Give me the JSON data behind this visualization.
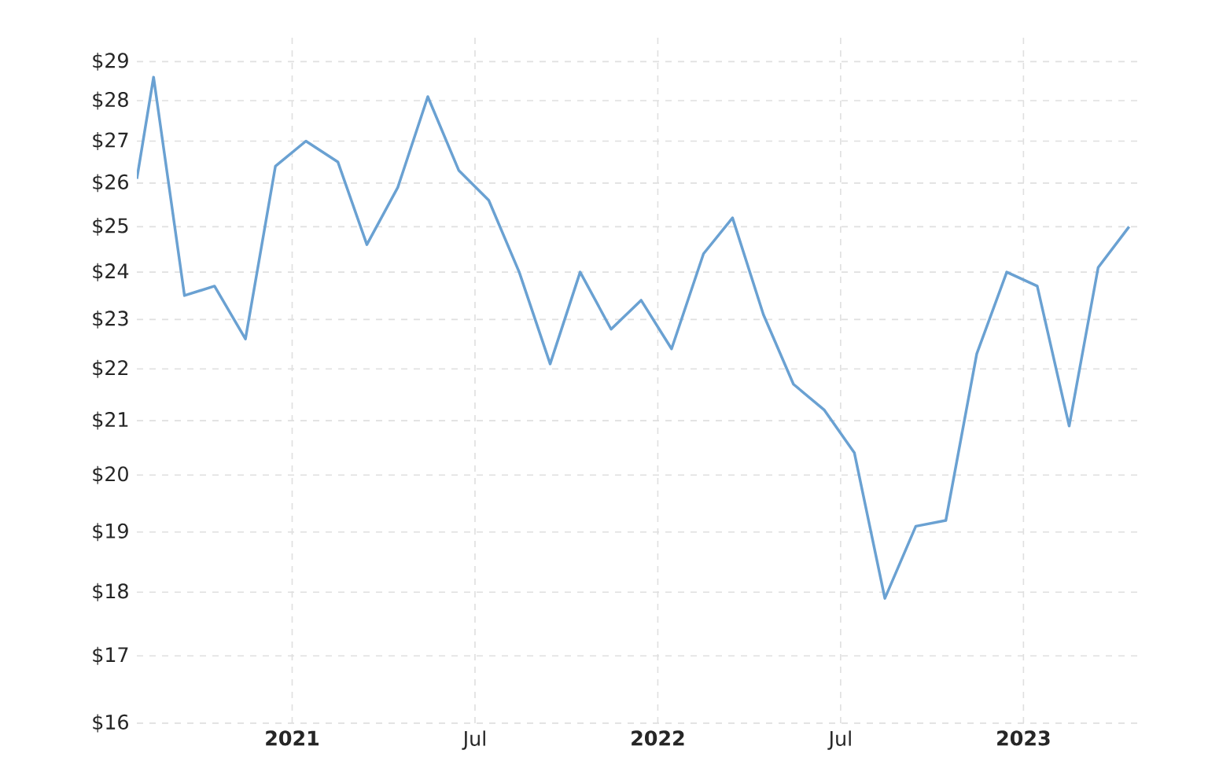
{
  "chart_data": {
    "type": "line",
    "log": "y",
    "grid": true,
    "color": "#6aa1d2",
    "line_style": "solid",
    "marker": "none",
    "x": [
      "2020-07-29",
      "2020-08-15",
      "2020-09-15",
      "2020-10-15",
      "2020-11-15",
      "2020-12-15",
      "2021-01-15",
      "2021-02-15",
      "2021-03-15",
      "2021-04-15",
      "2021-05-15",
      "2021-06-15",
      "2021-07-15",
      "2021-08-15",
      "2021-09-15",
      "2021-10-15",
      "2021-11-15",
      "2021-12-15",
      "2022-01-15",
      "2022-02-15",
      "2022-03-15",
      "2022-04-15",
      "2022-05-15",
      "2022-06-15",
      "2022-07-15",
      "2022-08-15",
      "2022-09-15",
      "2022-10-15",
      "2022-11-15",
      "2022-12-15",
      "2023-01-15",
      "2023-02-15",
      "2023-03-15",
      "2023-04-15"
    ],
    "values": [
      26.1,
      28.6,
      23.5,
      23.7,
      22.6,
      26.4,
      27.0,
      26.5,
      24.6,
      25.9,
      28.1,
      26.3,
      25.6,
      24.0,
      22.1,
      24.0,
      22.8,
      23.4,
      22.4,
      24.4,
      25.2,
      23.1,
      21.7,
      21.2,
      20.4,
      17.9,
      19.1,
      19.2,
      22.3,
      24.0,
      23.7,
      20.9,
      24.1,
      25.0
    ],
    "xlim": [
      "2020-07-29",
      "2023-04-23"
    ],
    "xticks": [
      {
        "value": "2021-01-01",
        "label": "2021"
      },
      {
        "value": "2021-07-01",
        "label": "Jul"
      },
      {
        "value": "2022-01-01",
        "label": "2022"
      },
      {
        "value": "2022-07-01",
        "label": "Jul"
      },
      {
        "value": "2023-01-01",
        "label": "2023"
      }
    ],
    "ylim": [
      16,
      29.8
    ],
    "yticks": [
      {
        "value": 16,
        "label": "$16"
      },
      {
        "value": 17,
        "label": "$17"
      },
      {
        "value": 18,
        "label": "$18"
      },
      {
        "value": 19,
        "label": "$19"
      },
      {
        "value": 20,
        "label": "$20"
      },
      {
        "value": 21,
        "label": "$21"
      },
      {
        "value": 22,
        "label": "$22"
      },
      {
        "value": 23,
        "label": "$23"
      },
      {
        "value": 24,
        "label": "$24"
      },
      {
        "value": 25,
        "label": "$25"
      },
      {
        "value": 26,
        "label": "$26"
      },
      {
        "value": 27,
        "label": "$27"
      },
      {
        "value": 28,
        "label": "$28"
      },
      {
        "value": 29,
        "label": "$29"
      }
    ]
  }
}
